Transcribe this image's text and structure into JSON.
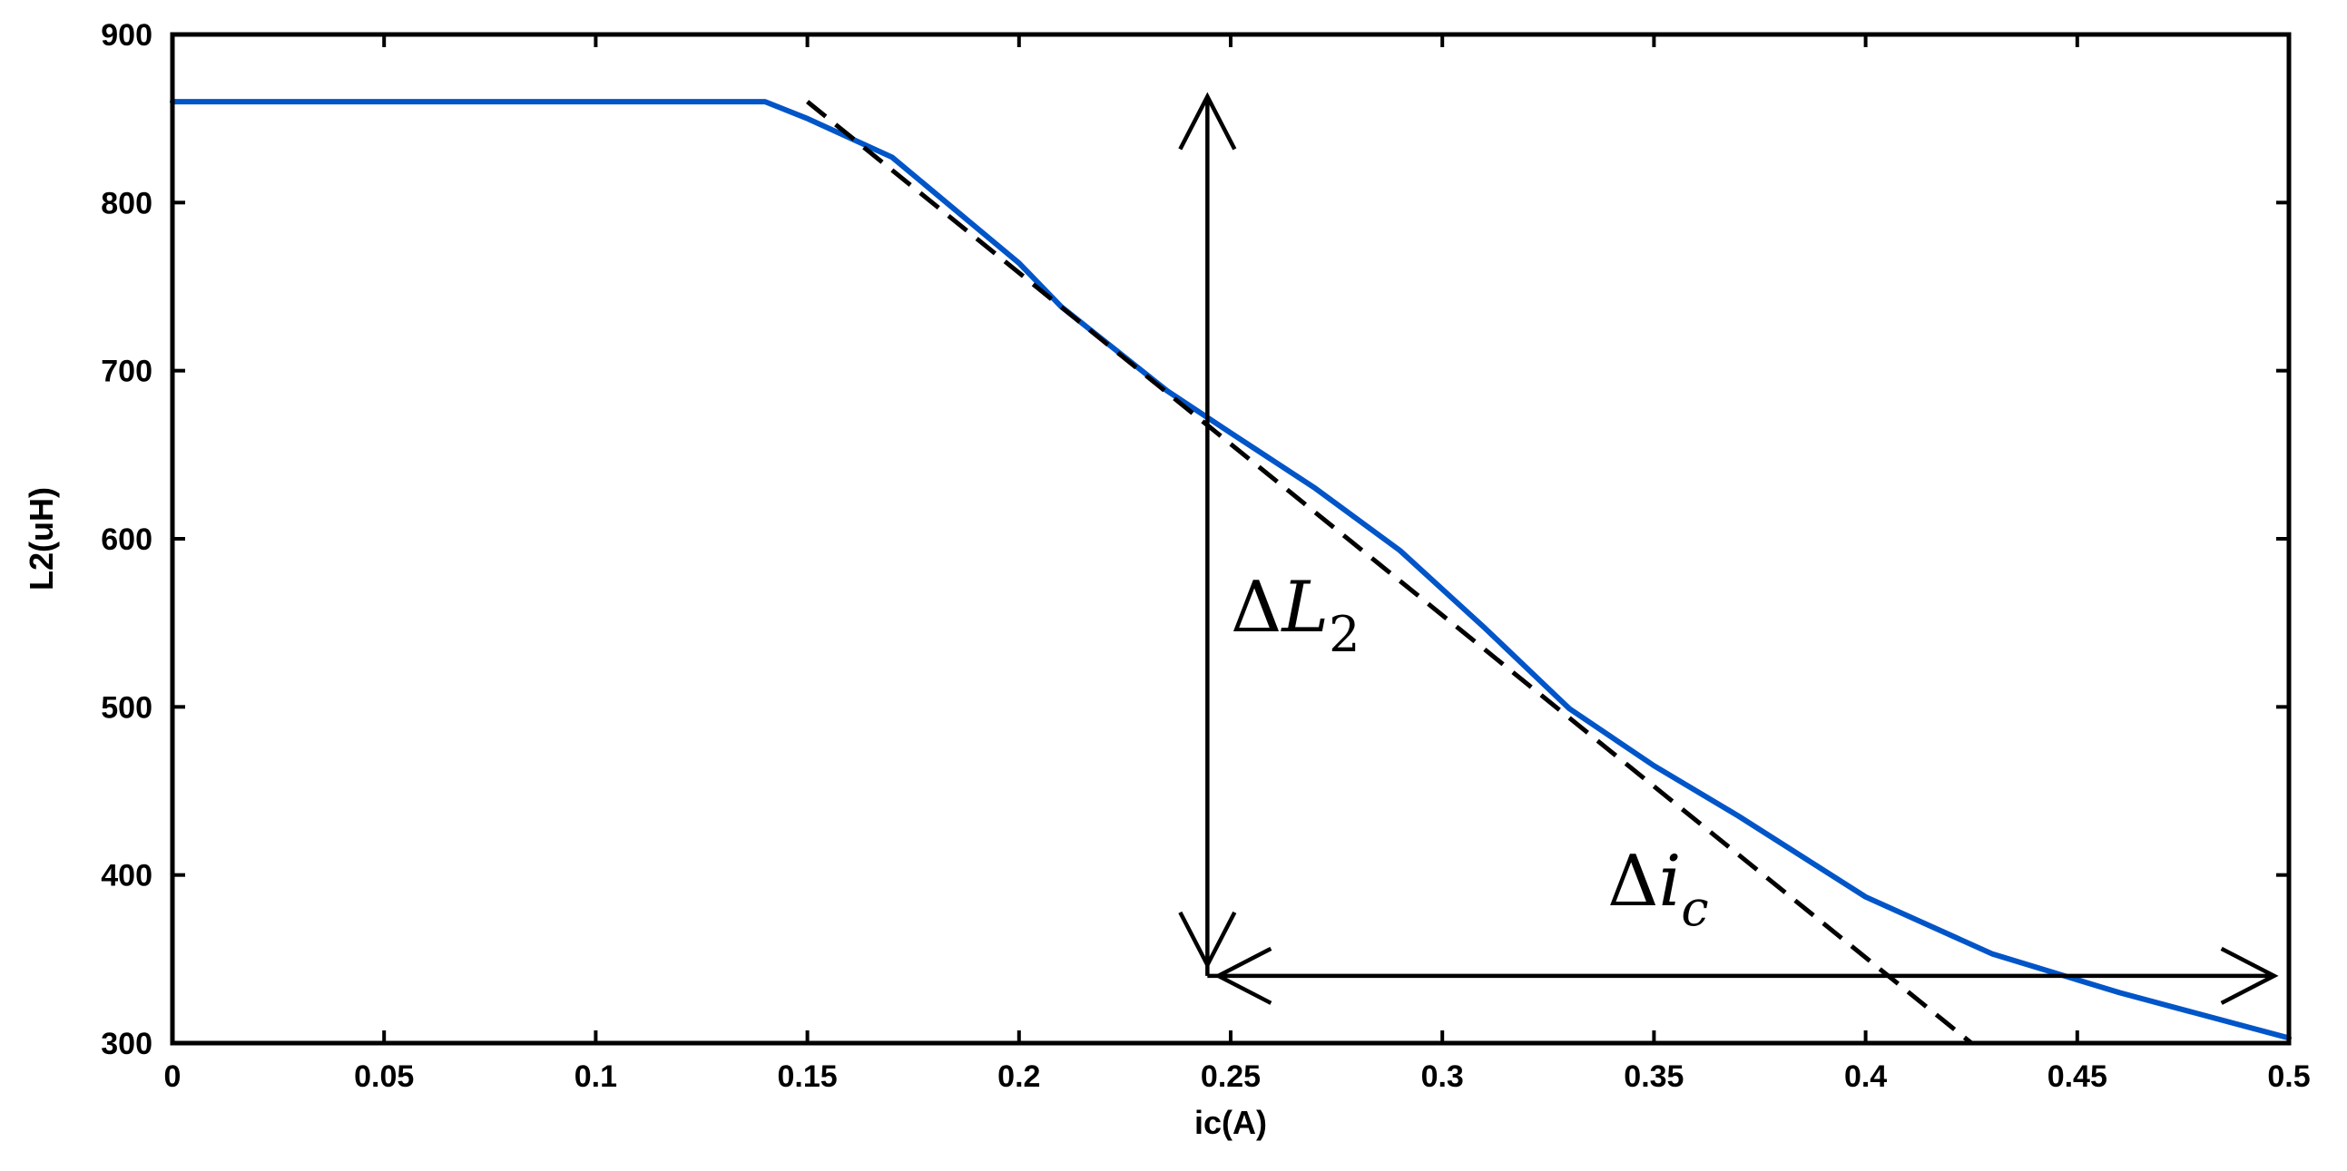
{
  "chart_data": {
    "type": "line",
    "title": "",
    "xlabel": "ic(A)",
    "ylabel": "L2(uH)",
    "xlim": [
      0,
      0.5
    ],
    "ylim": [
      300,
      900
    ],
    "x_ticks": [
      0,
      0.05,
      0.1,
      0.15,
      0.2,
      0.25,
      0.3,
      0.35,
      0.4,
      0.45,
      0.5
    ],
    "x_tick_labels": [
      "0",
      "0.05",
      "0.1",
      "0.15",
      "0.2",
      "0.25",
      "0.3",
      "0.35",
      "0.4",
      "0.45",
      "0.5"
    ],
    "y_ticks": [
      300,
      400,
      500,
      600,
      700,
      800,
      900
    ],
    "y_tick_labels": [
      "300",
      "400",
      "500",
      "600",
      "700",
      "800",
      "900"
    ],
    "grid": false,
    "series": [
      {
        "style": "solid",
        "color": "#0055c8",
        "points": [
          [
            0,
            860
          ],
          [
            0.14,
            860
          ],
          [
            0.15,
            850
          ],
          [
            0.17,
            827
          ],
          [
            0.2,
            764
          ],
          [
            0.21,
            738
          ],
          [
            0.22,
            718
          ],
          [
            0.235,
            688
          ],
          [
            0.25,
            663
          ],
          [
            0.27,
            630
          ],
          [
            0.29,
            593
          ],
          [
            0.31,
            547
          ],
          [
            0.33,
            499
          ],
          [
            0.35,
            465
          ],
          [
            0.37,
            435
          ],
          [
            0.4,
            387
          ],
          [
            0.43,
            353
          ],
          [
            0.46,
            330
          ],
          [
            0.5,
            303
          ]
        ]
      },
      {
        "style": "dashed",
        "color": "#000000",
        "points": [
          [
            0.15,
            860
          ],
          [
            0.425,
            300
          ]
        ]
      }
    ],
    "annotations": [
      {
        "type": "double-arrow",
        "orientation": "vertical",
        "from": [
          0.2445,
          340
        ],
        "to": [
          0.2445,
          862
        ],
        "label": "ΔL2",
        "label_at": [
          0.25,
          545
        ]
      },
      {
        "type": "double-arrow",
        "orientation": "horizontal",
        "from": [
          0.2445,
          340
        ],
        "to": [
          0.4965,
          340
        ],
        "label": "Δic",
        "label_at": [
          0.339,
          382
        ]
      }
    ]
  }
}
